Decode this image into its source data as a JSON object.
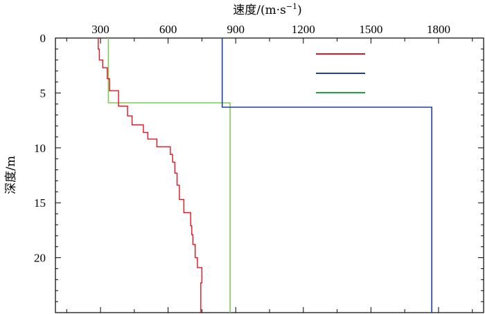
{
  "chart_data": {
    "type": "line",
    "xlabel": "速度/(m·s",
    "xlabel_sup": "−1",
    "xlabel_close": ")",
    "ylabel": "深度/m",
    "x_axis_position": "top",
    "y_inverted": true,
    "xlim": [
      100,
      2000
    ],
    "ylim": [
      0,
      25
    ],
    "x_ticks": [
      300,
      600,
      900,
      1200,
      1500,
      1800
    ],
    "y_ticks": [
      0,
      5,
      10,
      15,
      20
    ],
    "grid": false,
    "legend": {
      "placement": "top-right",
      "entries": [
        "",
        "",
        ""
      ]
    },
    "series": [
      {
        "color": "#e8101a",
        "style": "step",
        "points": [
          [
            290,
            0
          ],
          [
            290,
            1
          ],
          [
            295,
            1
          ],
          [
            295,
            2
          ],
          [
            310,
            2
          ],
          [
            310,
            2.7
          ],
          [
            330,
            2.7
          ],
          [
            330,
            3.7
          ],
          [
            340,
            3.7
          ],
          [
            340,
            4.8
          ],
          [
            380,
            4.8
          ],
          [
            380,
            6.2
          ],
          [
            420,
            6.2
          ],
          [
            420,
            7.1
          ],
          [
            440,
            7.1
          ],
          [
            440,
            7.9
          ],
          [
            490,
            7.9
          ],
          [
            490,
            8.6
          ],
          [
            510,
            8.6
          ],
          [
            510,
            9.2
          ],
          [
            550,
            9.2
          ],
          [
            550,
            9.9
          ],
          [
            610,
            9.9
          ],
          [
            610,
            10.6
          ],
          [
            620,
            10.6
          ],
          [
            620,
            11.3
          ],
          [
            630,
            11.3
          ],
          [
            630,
            12.3
          ],
          [
            640,
            12.3
          ],
          [
            640,
            13.4
          ],
          [
            650,
            13.4
          ],
          [
            650,
            14.7
          ],
          [
            670,
            14.7
          ],
          [
            670,
            15.9
          ],
          [
            700,
            15.9
          ],
          [
            700,
            17.1
          ],
          [
            705,
            17.1
          ],
          [
            705,
            17.9
          ],
          [
            710,
            17.9
          ],
          [
            710,
            18.8
          ],
          [
            720,
            18.8
          ],
          [
            720,
            20.0
          ],
          [
            730,
            20.0
          ],
          [
            730,
            20.9
          ],
          [
            750,
            20.9
          ],
          [
            750,
            22.3
          ],
          [
            745,
            22.3
          ],
          [
            745,
            23.6
          ],
          [
            745,
            25
          ]
        ]
      },
      {
        "color": "#1f3da6",
        "style": "step",
        "points": [
          [
            840,
            0
          ],
          [
            840,
            6.3
          ],
          [
            1770,
            6.3
          ],
          [
            1770,
            25
          ]
        ]
      },
      {
        "color": "#7ccd5a",
        "style": "step",
        "points": [
          [
            335,
            0
          ],
          [
            335,
            5.9
          ],
          [
            875,
            5.9
          ],
          [
            875,
            25
          ]
        ]
      }
    ],
    "legend_swatch_colors": [
      "#e8101a",
      "#1f3da6",
      "#1aa43e"
    ]
  }
}
